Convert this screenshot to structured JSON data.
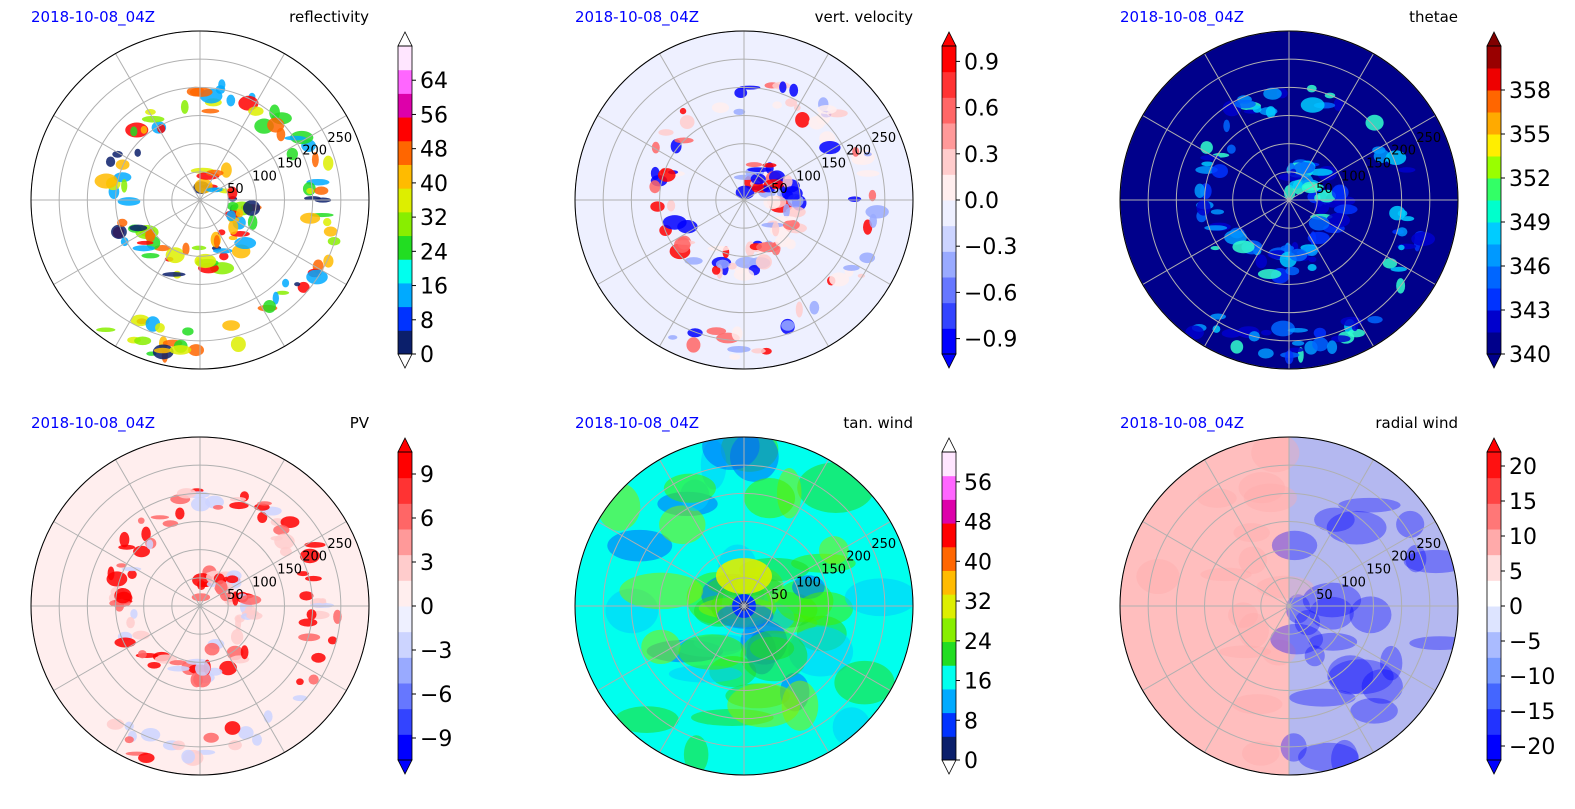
{
  "figure": {
    "panels": [
      {
        "date_label": "2018-10-08_04Z",
        "variable_label": "reflectivity"
      },
      {
        "date_label": "2018-10-08_04Z",
        "variable_label": "vert. velocity"
      },
      {
        "date_label": "2018-10-08_04Z",
        "variable_label": "thetae"
      },
      {
        "date_label": "2018-10-08_04Z",
        "variable_label": "PV"
      },
      {
        "date_label": "2018-10-08_04Z",
        "variable_label": "tan. wind"
      },
      {
        "date_label": "2018-10-08_04Z",
        "variable_label": "radial wind"
      }
    ]
  },
  "chart_data": [
    {
      "type": "heatmap",
      "projection": "polar",
      "title": "reflectivity",
      "subtitle": "2018-10-08_04Z",
      "radial_ticks": [
        "50",
        "100",
        "150",
        "200",
        "250"
      ],
      "radial_range": [
        0,
        300
      ],
      "colorbar": {
        "ticks": [
          "0",
          "8",
          "16",
          "24",
          "32",
          "40",
          "48",
          "56",
          "64"
        ],
        "range": [
          0,
          72
        ],
        "extend": "both",
        "colors": [
          "#0b1f6b",
          "#0033ff",
          "#00aaff",
          "#00ffee",
          "#22dd22",
          "#88ee00",
          "#ddee00",
          "#ffbb00",
          "#ff6600",
          "#ff0000",
          "#dd00aa",
          "#ff66ff",
          "#ffe6ff"
        ],
        "extend_low_color": "#ffffff",
        "extend_high_color": "#ffffff"
      },
      "field_palette": [
        "#ffffff",
        "#0b1f6b",
        "#00aaff",
        "#22dd22",
        "#88ee00",
        "#ddee00",
        "#ffbb00",
        "#ff6600",
        "#ff0000"
      ],
      "field_pattern": "bands"
    },
    {
      "type": "heatmap",
      "projection": "polar",
      "title": "vert. velocity",
      "subtitle": "2018-10-08_04Z",
      "radial_ticks": [
        "50",
        "100",
        "150",
        "200",
        "250"
      ],
      "radial_range": [
        0,
        300
      ],
      "colorbar": {
        "ticks": [
          "−0.9",
          "−0.6",
          "−0.3",
          "0.0",
          "0.3",
          "0.6",
          "0.9"
        ],
        "range": [
          -1.0,
          1.0
        ],
        "extend": "both",
        "colors": [
          "#0000ff",
          "#3344ff",
          "#6677ff",
          "#99aaff",
          "#ccd4ff",
          "#eef0ff",
          "#ffeeee",
          "#ffcccc",
          "#ff9999",
          "#ff6666",
          "#ff3333",
          "#ff0000"
        ],
        "extend_low_color": "#0000ff",
        "extend_high_color": "#ff0000"
      },
      "field_palette": [
        "#eef0ff",
        "#ffeeee",
        "#ffcccc",
        "#ff6666",
        "#ff0000",
        "#99aaff",
        "#0000ff"
      ],
      "field_pattern": "spiral"
    },
    {
      "type": "heatmap",
      "projection": "polar",
      "title": "thetae",
      "subtitle": "2018-10-08_04Z",
      "radial_ticks": [
        "50",
        "100",
        "150",
        "200",
        "250"
      ],
      "radial_range": [
        0,
        300
      ],
      "colorbar": {
        "ticks": [
          "340",
          "343",
          "346",
          "349",
          "352",
          "355",
          "358"
        ],
        "range": [
          340,
          361
        ],
        "extend": "both",
        "colors": [
          "#00008b",
          "#0000cd",
          "#0033ff",
          "#0066ff",
          "#0099ff",
          "#00ccff",
          "#00ffcc",
          "#33ff66",
          "#99ff00",
          "#ffee00",
          "#ffaa00",
          "#ff6600",
          "#ee0000",
          "#990000"
        ],
        "extend_low_color": "#00008b",
        "extend_high_color": "#800000"
      },
      "field_palette": [
        "#00008b",
        "#0000cd",
        "#0033ff",
        "#0066ff",
        "#0099ff",
        "#00ccff",
        "#33ffcc"
      ],
      "field_pattern": "spiral"
    },
    {
      "type": "heatmap",
      "projection": "polar",
      "title": "PV",
      "subtitle": "2018-10-08_04Z",
      "radial_ticks": [
        "50",
        "100",
        "150",
        "200",
        "250"
      ],
      "radial_range": [
        0,
        300
      ],
      "colorbar": {
        "ticks": [
          "−9",
          "−6",
          "−3",
          "0",
          "3",
          "6",
          "9"
        ],
        "range": [
          -10.5,
          10.5
        ],
        "extend": "both",
        "colors": [
          "#0000ff",
          "#3344ff",
          "#6677ff",
          "#99aaff",
          "#ccd4ff",
          "#eef0ff",
          "#ffeeee",
          "#ffcccc",
          "#ff9999",
          "#ff6666",
          "#ff3333",
          "#ff0000"
        ],
        "extend_low_color": "#0000ff",
        "extend_high_color": "#ff0000"
      },
      "field_palette": [
        "#ffeeee",
        "#ffcccc",
        "#ff6666",
        "#ff0000",
        "#ccd4ff"
      ],
      "field_pattern": "spiral"
    },
    {
      "type": "heatmap",
      "projection": "polar",
      "title": "tan. wind",
      "subtitle": "2018-10-08_04Z",
      "radial_ticks": [
        "50",
        "100",
        "150",
        "200",
        "250"
      ],
      "radial_range": [
        0,
        300
      ],
      "colorbar": {
        "ticks": [
          "0",
          "8",
          "16",
          "24",
          "32",
          "40",
          "48",
          "56"
        ],
        "range": [
          0,
          62
        ],
        "extend": "both",
        "colors": [
          "#0b1f6b",
          "#0033ff",
          "#00aaff",
          "#00ffee",
          "#22dd22",
          "#88ee00",
          "#ddee00",
          "#ffbb00",
          "#ff6600",
          "#ff0000",
          "#dd00aa",
          "#ff66ff",
          "#ffe6ff"
        ],
        "extend_low_color": "#ffffff",
        "extend_high_color": "#ffffff"
      },
      "field_palette": [
        "#00ffee",
        "#00ccff",
        "#22dd22",
        "#44ee00",
        "#88ee00",
        "#0066ff"
      ],
      "field_pattern": "rings"
    },
    {
      "type": "heatmap",
      "projection": "polar",
      "title": "radial wind",
      "subtitle": "2018-10-08_04Z",
      "radial_ticks": [
        "50",
        "100",
        "150",
        "200",
        "250"
      ],
      "radial_range": [
        0,
        300
      ],
      "colorbar": {
        "ticks": [
          "−20",
          "−15",
          "−10",
          "−5",
          "0",
          "5",
          "10",
          "15",
          "20"
        ],
        "range": [
          -22,
          22
        ],
        "extend": "both",
        "colors": [
          "#0000ff",
          "#2233ff",
          "#4466ff",
          "#7799ff",
          "#aabbff",
          "#dde4ff",
          "#ffffff",
          "#ffdddd",
          "#ffaaaa",
          "#ff7777",
          "#ff4444",
          "#ff1111"
        ],
        "extend_low_color": "#0000ff",
        "extend_high_color": "#ff0000"
      },
      "field_palette": [
        "#ffdddd",
        "#ffaaaa",
        "#ffffff",
        "#dde4ff",
        "#7799ff",
        "#0000ff"
      ],
      "field_pattern": "halves"
    }
  ]
}
